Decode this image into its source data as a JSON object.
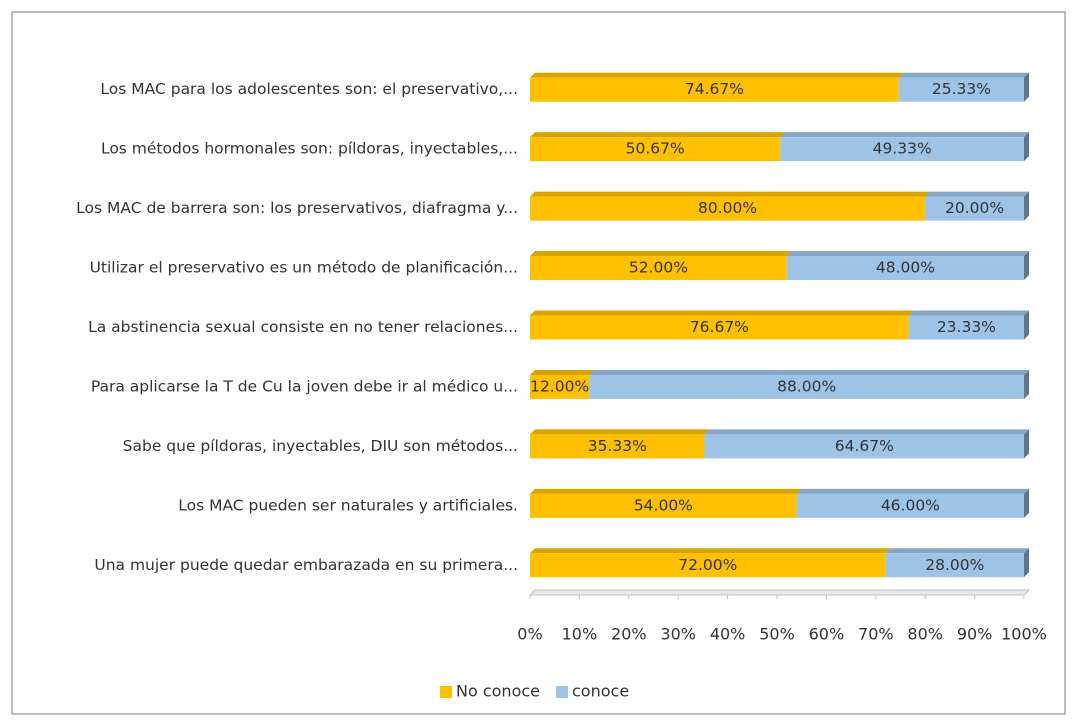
{
  "chart_data": {
    "type": "stacked_bar_100_horizontal",
    "categories": [
      "Los MAC para los adolescentes son: el preservativo,...",
      "Los métodos hormonales son: píldoras, inyectables,...",
      "Los MAC de barrera son: los preservativos, diafragma y...",
      "Utilizar el preservativo es  un método de planificación...",
      "La abstinencia sexual consiste en no tener relaciones...",
      "Para aplicarse la T de Cu la joven debe ir al médico u...",
      "Sabe que píldoras, inyectables, DIU son métodos...",
      "Los MAC pueden ser naturales y artificiales.",
      "Una mujer puede quedar embarazada en su primera..."
    ],
    "series": [
      {
        "name": "No conoce",
        "color": "#ffc000",
        "values": [
          74.67,
          50.67,
          80.0,
          52.0,
          76.67,
          12.0,
          35.33,
          54.0,
          72.0
        ],
        "value_labels": [
          "74.67%",
          "50.67%",
          "80.00%",
          "52.00%",
          "76.67%",
          "12.00%",
          "35.33%",
          "54.00%",
          "72.00%"
        ]
      },
      {
        "name": "conoce",
        "color": "#9dc3e6",
        "values": [
          25.33,
          49.33,
          20.0,
          48.0,
          23.33,
          88.0,
          64.67,
          46.0,
          28.0
        ],
        "value_labels": [
          "25.33%",
          "49.33%",
          "20.00%",
          "48.00%",
          "23.33%",
          "88.00%",
          "64.67%",
          "46.00%",
          "28.00%"
        ]
      }
    ],
    "xlim": [
      0,
      100
    ],
    "xticks": [
      {
        "value": 0,
        "label": "0%"
      },
      {
        "value": 10,
        "label": "10%"
      },
      {
        "value": 20,
        "label": "20%"
      },
      {
        "value": 30,
        "label": "30%"
      },
      {
        "value": 40,
        "label": "40%"
      },
      {
        "value": 50,
        "label": "50%"
      },
      {
        "value": 60,
        "label": "60%"
      },
      {
        "value": 70,
        "label": "70%"
      },
      {
        "value": 80,
        "label": "80%"
      },
      {
        "value": 90,
        "label": "90%"
      },
      {
        "value": 100,
        "label": "100%"
      }
    ],
    "legend": "bottom"
  }
}
